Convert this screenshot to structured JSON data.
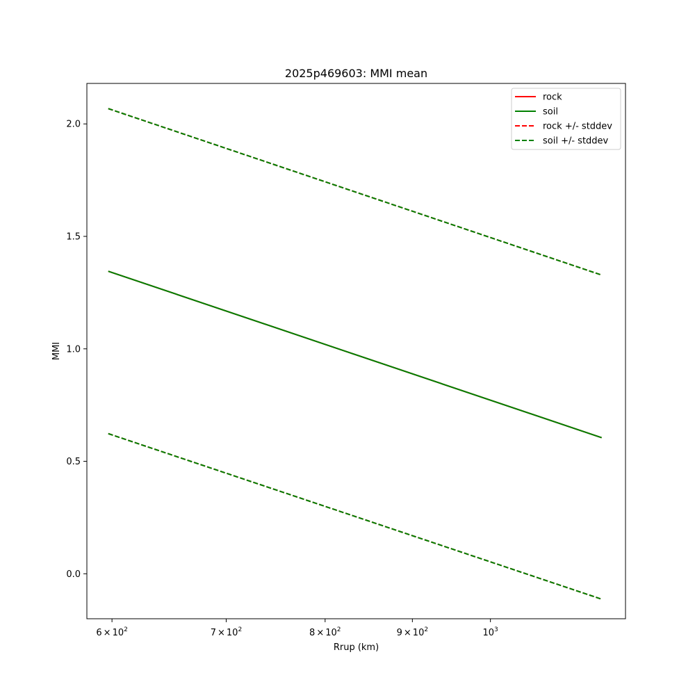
{
  "chart_data": {
    "type": "line",
    "title": "2025p469603: MMI mean",
    "xlabel": "Rrup (km)",
    "ylabel": "MMI",
    "xscale": "log",
    "xlim": [
      580,
      1200
    ],
    "ylim": [
      -0.2,
      2.18
    ],
    "grid": false,
    "legend_position": "top-right",
    "x_ticks": [
      {
        "value": 600,
        "base": "6",
        "exp": "2"
      },
      {
        "value": 700,
        "base": "7",
        "exp": "2"
      },
      {
        "value": 800,
        "base": "8",
        "exp": "2"
      },
      {
        "value": 900,
        "base": "9",
        "exp": "2"
      },
      {
        "value": 1000,
        "base": "",
        "exp": "3"
      }
    ],
    "y_ticks": [
      {
        "value": 0.0,
        "label": "0.0"
      },
      {
        "value": 0.5,
        "label": "0.5"
      },
      {
        "value": 1.0,
        "label": "1.0"
      },
      {
        "value": 1.5,
        "label": "1.5"
      },
      {
        "value": 2.0,
        "label": "2.0"
      }
    ],
    "x": [
      597,
      1162
    ],
    "series": [
      {
        "name": "rock",
        "color": "#ff0000",
        "style": "solid",
        "values": [
          1.345,
          0.605
        ]
      },
      {
        "name": "soil",
        "color": "#008000",
        "style": "solid",
        "values": [
          1.345,
          0.605
        ]
      },
      {
        "name": "rock +/- stddev",
        "color": "#ff0000",
        "style": "dashed",
        "values": [
          2.068,
          1.328
        ]
      },
      {
        "name": "",
        "color": "#ff0000",
        "style": "dashed",
        "values": [
          0.623,
          -0.113
        ]
      },
      {
        "name": "soil +/- stddev",
        "color": "#008000",
        "style": "dashed",
        "values": [
          2.068,
          1.328
        ]
      },
      {
        "name": "",
        "color": "#008000",
        "style": "dashed",
        "values": [
          0.623,
          -0.113
        ]
      }
    ]
  }
}
